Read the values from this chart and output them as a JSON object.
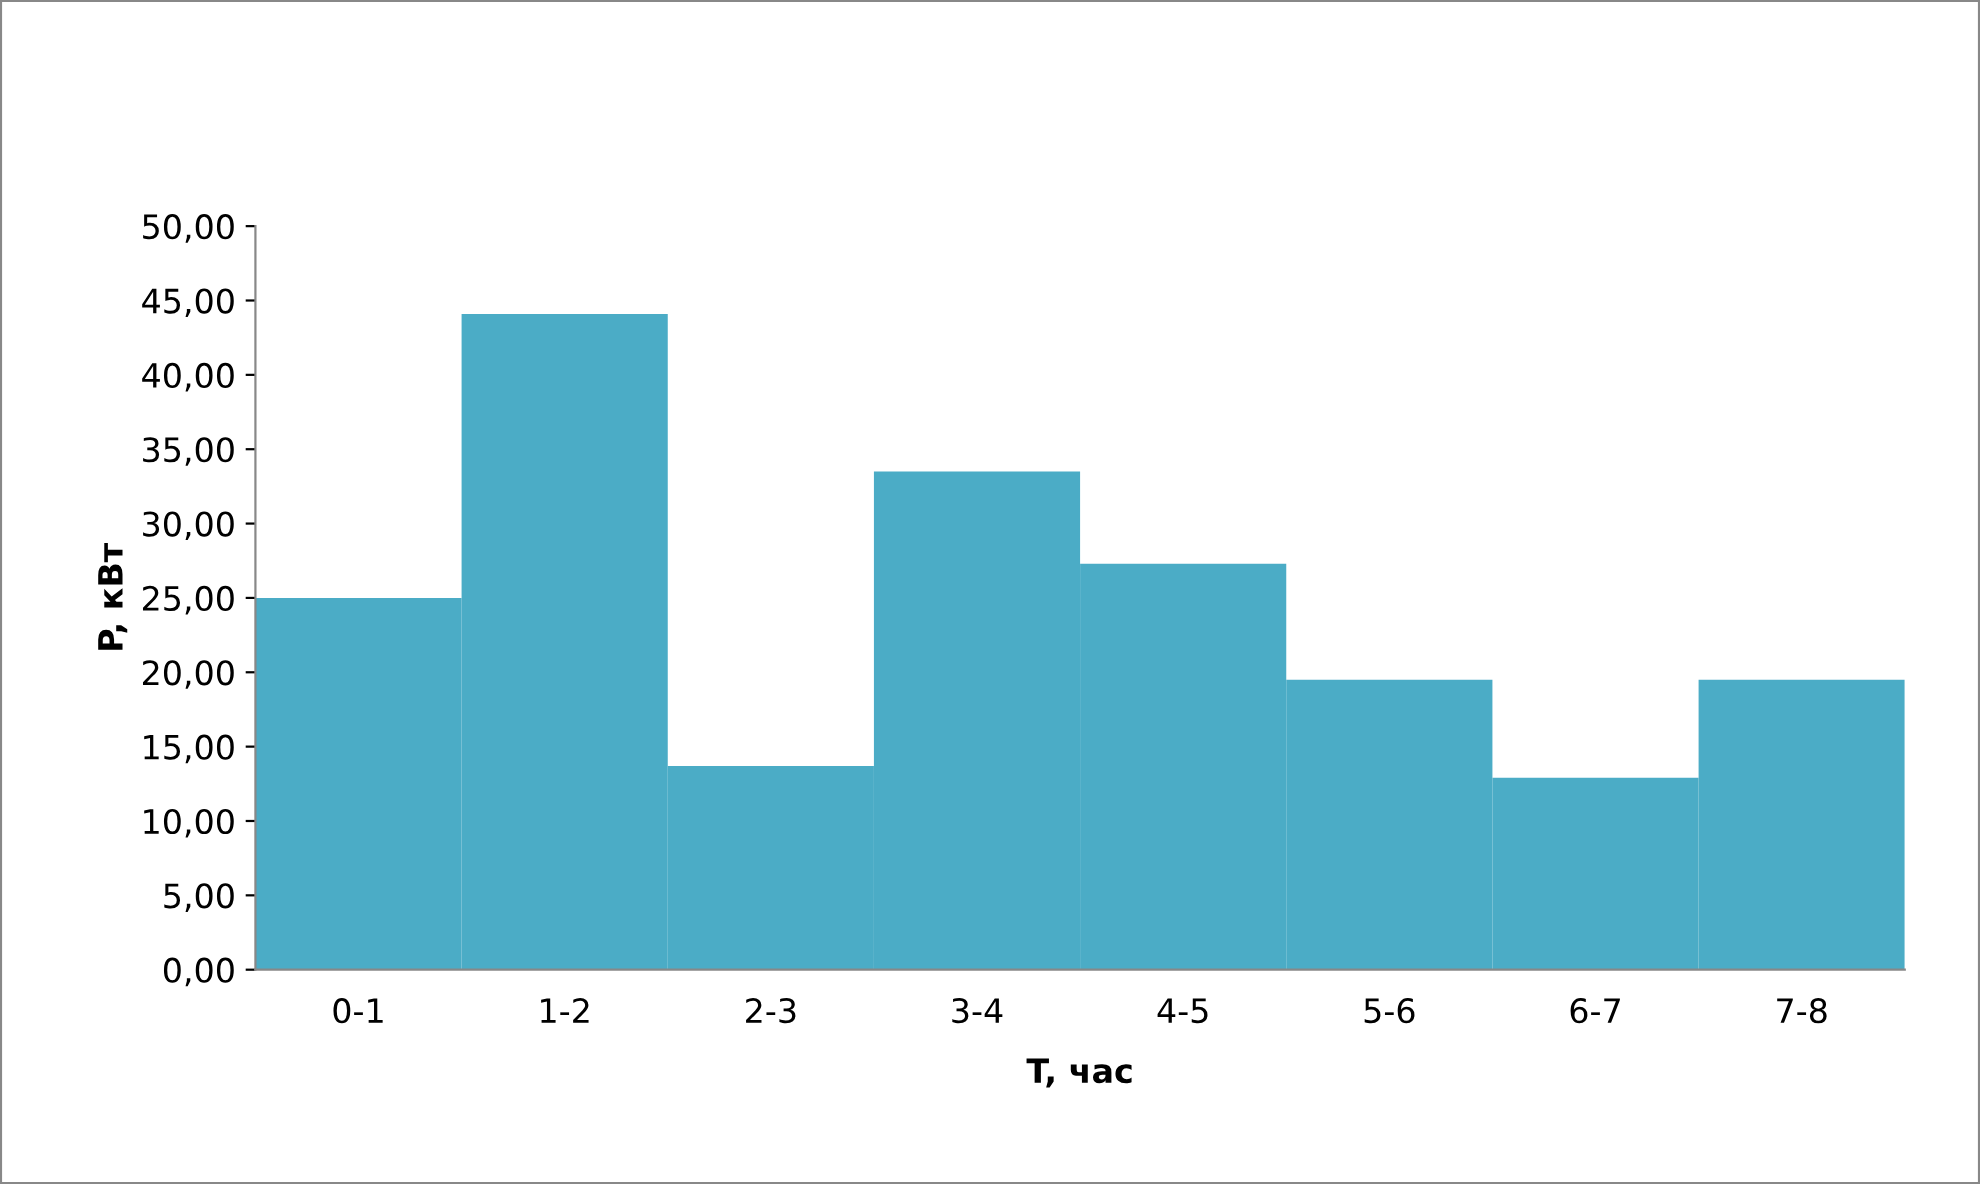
{
  "chart_data": {
    "type": "bar",
    "xlabel": "T, час",
    "ylabel": "P, кВт",
    "categories": [
      "0-1",
      "1-2",
      "2-3",
      "3-4",
      "4-5",
      "5-6",
      "6-7",
      "7-8"
    ],
    "values": [
      25.0,
      44.1,
      13.7,
      33.5,
      27.3,
      19.5,
      12.9,
      19.5
    ],
    "color": "#4bacc6",
    "ylim": [
      0,
      50
    ],
    "yticks": [
      {
        "value": 0,
        "label": "0,00"
      },
      {
        "value": 5,
        "label": "5,00"
      },
      {
        "value": 10,
        "label": "10,00"
      },
      {
        "value": 15,
        "label": "15,00"
      },
      {
        "value": 20,
        "label": "20,00"
      },
      {
        "value": 25,
        "label": "25,00"
      },
      {
        "value": 30,
        "label": "30,00"
      },
      {
        "value": 35,
        "label": "35,00"
      },
      {
        "value": 40,
        "label": "40,00"
      },
      {
        "value": 45,
        "label": "45,00"
      },
      {
        "value": 50,
        "label": "50,00"
      }
    ],
    "grid": false,
    "legend": false
  }
}
